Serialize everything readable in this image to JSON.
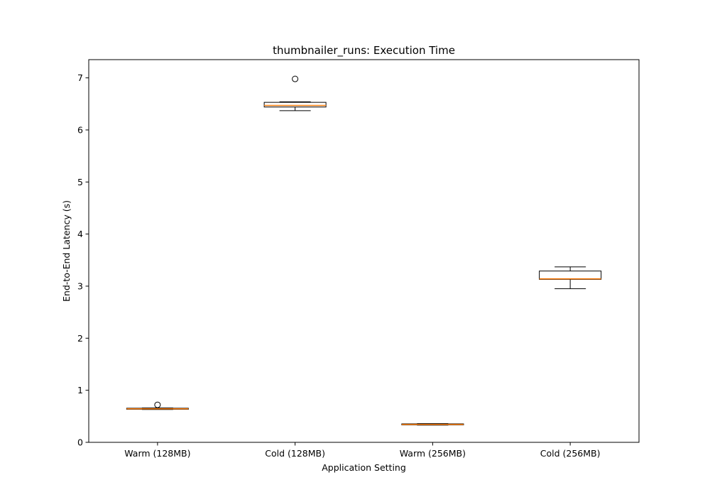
{
  "chart_data": {
    "type": "box",
    "title": "thumbnailer_runs: Execution Time",
    "xlabel": "Application Setting",
    "ylabel": "End-to-End Latency (s)",
    "ylim": [
      0,
      7.35
    ],
    "yticks": [
      0,
      1,
      2,
      3,
      4,
      5,
      6,
      7
    ],
    "grid": false,
    "colors": {
      "box": "#000000",
      "median": "#ff7f0e",
      "flier": "#000000"
    },
    "categories": [
      "Warm (128MB)",
      "Cold (128MB)",
      "Warm (256MB)",
      "Cold (256MB)"
    ],
    "boxes": [
      {
        "whisker_low": 0.63,
        "q1": 0.635,
        "median": 0.645,
        "q3": 0.655,
        "whisker_high": 0.66,
        "fliers": [
          0.72
        ]
      },
      {
        "whisker_low": 6.37,
        "q1": 6.44,
        "median": 6.47,
        "q3": 6.53,
        "whisker_high": 6.54,
        "fliers": [
          6.98
        ]
      },
      {
        "whisker_low": 0.33,
        "q1": 0.335,
        "median": 0.345,
        "q3": 0.355,
        "whisker_high": 0.36,
        "fliers": []
      },
      {
        "whisker_low": 2.95,
        "q1": 3.13,
        "median": 3.14,
        "q3": 3.29,
        "whisker_high": 3.37,
        "fliers": []
      }
    ]
  }
}
